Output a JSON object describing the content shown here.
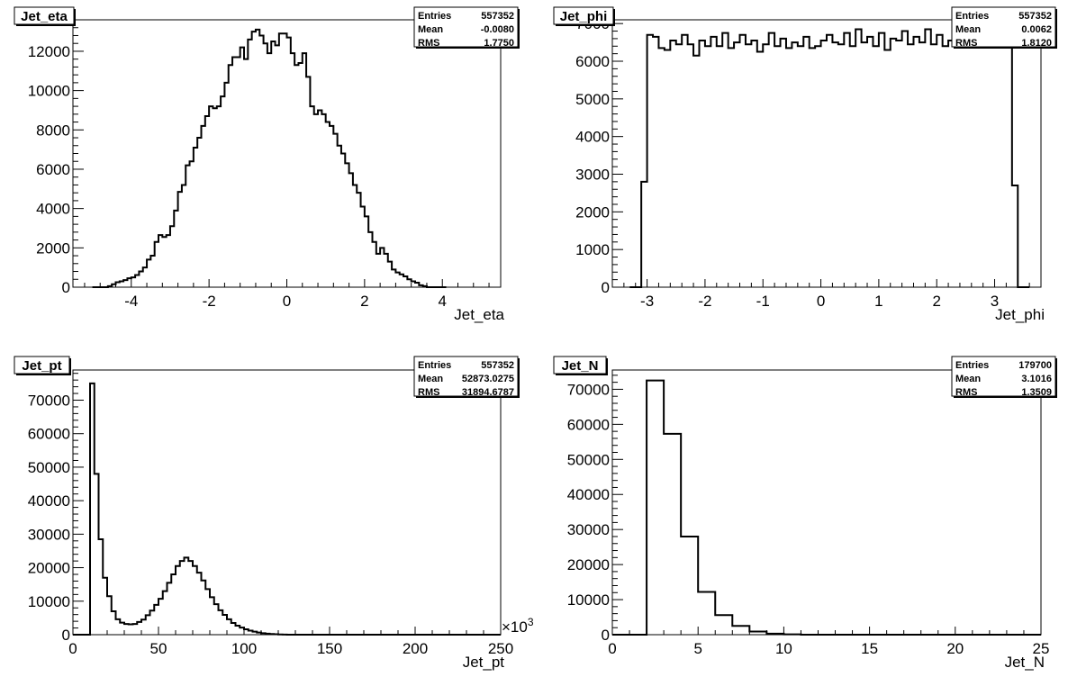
{
  "chart_data": [
    {
      "type": "histogram",
      "title": "Jet_eta",
      "xlabel": "Jet_eta",
      "ylabel": "",
      "xlim": [
        -5.5,
        5.5
      ],
      "ylim": [
        0,
        13600
      ],
      "xticks": [
        -4,
        -2,
        0,
        2,
        4
      ],
      "yticks": [
        0,
        2000,
        4000,
        6000,
        8000,
        10000,
        12000
      ],
      "stats": {
        "entries_label": "Entries",
        "entries": "557352",
        "mean_label": "Mean",
        "mean": "-0.0080",
        "rms_label": "RMS",
        "rms": "1.7750"
      },
      "bin_edges_start": -5.0,
      "bin_width": 0.1,
      "values": [
        0,
        0,
        0,
        0,
        50,
        150,
        250,
        300,
        360,
        450,
        500,
        620,
        800,
        1000,
        1400,
        1600,
        2300,
        2650,
        2550,
        2650,
        3100,
        3900,
        4850,
        5200,
        6200,
        6400,
        7100,
        7600,
        8200,
        8700,
        9200,
        9100,
        9200,
        9700,
        10400,
        11300,
        11700,
        11700,
        12200,
        11600,
        12600,
        13000,
        13100,
        12800,
        12400,
        11900,
        12500,
        12300,
        12900,
        12900,
        12700,
        11900,
        11300,
        11400,
        11900,
        10700,
        9200,
        8800,
        9000,
        8800,
        8400,
        8200,
        7800,
        7200,
        6800,
        6300,
        5800,
        5200,
        4800,
        4100,
        3600,
        2800,
        2300,
        1700,
        2000,
        1700,
        1300,
        900,
        750,
        650,
        550,
        400,
        300,
        230,
        100,
        50,
        0,
        0,
        0,
        0,
        0
      ]
    },
    {
      "type": "histogram",
      "title": "Jet_phi",
      "xlabel": "Jet_phi",
      "ylabel": "",
      "xlim": [
        -3.6,
        3.8
      ],
      "ylim": [
        0,
        7100
      ],
      "xticks": [
        -3,
        -2,
        -1,
        0,
        1,
        2,
        3
      ],
      "yticks": [
        0,
        1000,
        2000,
        3000,
        4000,
        5000,
        6000,
        7000
      ],
      "stats": {
        "entries_label": "Entries",
        "entries": "557352",
        "mean_label": "Mean",
        "mean": "0.0062",
        "rms_label": "RMS",
        "rms": "1.8120"
      },
      "bin_edges_start": -3.3,
      "bin_width": 0.1,
      "values": [
        0,
        0,
        2800,
        6700,
        6650,
        6350,
        6300,
        6550,
        6450,
        6700,
        6450,
        6150,
        6550,
        6400,
        6650,
        6400,
        6750,
        6350,
        6500,
        6700,
        6450,
        6550,
        6250,
        6450,
        6750,
        6400,
        6600,
        6350,
        6500,
        6400,
        6650,
        6350,
        6400,
        6550,
        6700,
        6500,
        6450,
        6750,
        6400,
        6850,
        6500,
        6650,
        6400,
        6750,
        6300,
        6600,
        6550,
        6800,
        6450,
        6650,
        6500,
        6850,
        6450,
        6700,
        6400,
        6550,
        6800,
        6450,
        6700,
        6500,
        6550,
        6400,
        6850,
        6450,
        6650,
        6700,
        2700,
        0,
        0
      ]
    },
    {
      "type": "histogram",
      "title": "Jet_pt",
      "xlabel": "Jet_pt",
      "ylabel": "",
      "x_multiplier": "×10",
      "x_multiplier_exp": "3",
      "xlim": [
        0,
        250
      ],
      "ylim": [
        0,
        79000
      ],
      "xticks": [
        0,
        50,
        100,
        150,
        200,
        250
      ],
      "yticks": [
        0,
        10000,
        20000,
        30000,
        40000,
        50000,
        60000,
        70000
      ],
      "stats": {
        "entries_label": "Entries",
        "entries": "557352",
        "mean_label": "Mean",
        "mean": "52873.0275",
        "rms_label": "RMS",
        "rms": "31894.6787"
      },
      "bin_edges_start": 0,
      "bin_width": 2.5,
      "values": [
        0,
        0,
        0,
        0,
        75000,
        48000,
        28500,
        17000,
        11500,
        7000,
        4600,
        3600,
        3200,
        3100,
        3200,
        3800,
        4500,
        5800,
        7200,
        8900,
        10700,
        13000,
        15500,
        18000,
        20500,
        22000,
        23000,
        22000,
        20500,
        18500,
        16200,
        13600,
        11200,
        9100,
        7300,
        5900,
        4600,
        3500,
        2700,
        2100,
        1600,
        1200,
        900,
        650,
        450,
        300,
        200,
        120,
        60,
        30,
        15,
        5,
        0,
        0,
        0,
        0,
        0,
        0,
        0,
        0,
        0,
        0,
        0,
        0,
        0,
        0,
        0,
        0,
        0,
        0,
        0,
        0,
        0,
        0,
        0,
        0,
        0,
        0,
        0,
        0,
        0,
        0,
        0,
        0,
        0,
        0,
        0,
        0,
        0,
        0,
        0,
        0,
        0,
        0,
        0,
        0,
        0,
        0,
        0,
        0
      ]
    },
    {
      "type": "histogram",
      "title": "Jet_N",
      "xlabel": "Jet_N",
      "ylabel": "",
      "xlim": [
        0,
        25
      ],
      "ylim": [
        0,
        75500
      ],
      "xticks": [
        0,
        5,
        10,
        15,
        20,
        25
      ],
      "yticks": [
        0,
        10000,
        20000,
        30000,
        40000,
        50000,
        60000,
        70000
      ],
      "stats": {
        "entries_label": "Entries",
        "entries": "179700",
        "mean_label": "Mean",
        "mean": "3.1016",
        "rms_label": "RMS",
        "rms": "1.3509"
      },
      "bin_edges_start": 0,
      "bin_width": 1,
      "values": [
        0,
        0,
        72500,
        57300,
        28000,
        12200,
        5600,
        2500,
        900,
        300,
        100,
        0,
        0,
        0,
        0,
        0,
        0,
        0,
        0,
        0,
        0,
        0,
        0,
        0,
        0
      ]
    }
  ]
}
